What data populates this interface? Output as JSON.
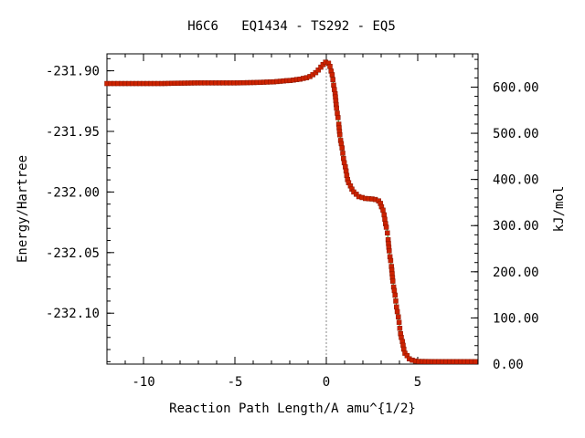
{
  "chart_data": {
    "type": "line",
    "title": "H6C6   EQ1434 - TS292 - EQ5",
    "xlabel": "Reaction Path Length/A amu^{1/2}",
    "ylabel": "Energy/Hartree",
    "y2label": "kJ/mol",
    "xlim": [
      -12,
      8.3
    ],
    "ylim": [
      -232.142,
      -231.886
    ],
    "y2lim": [
      0,
      672.1
    ],
    "x_ticks": [
      -10,
      -5,
      0,
      5
    ],
    "x_tick_labels": [
      "-10",
      "-5",
      "0",
      "5"
    ],
    "y_ticks": [
      -231.9,
      -231.95,
      -232.0,
      -232.05,
      -232.1
    ],
    "y_tick_labels": [
      "-231.90",
      "-231.95",
      "-232.00",
      "-232.05",
      "-232.10"
    ],
    "y2_ticks": [
      600,
      500,
      400,
      300,
      200,
      100,
      0
    ],
    "y2_tick_labels": [
      "600.00",
      "500.00",
      "400.00",
      "300.00",
      "200.00",
      "100.00",
      "0.00"
    ],
    "transition_state_x": 0,
    "grid": false,
    "series": [
      {
        "points": [
          [
            -12,
            -231.9105
          ],
          [
            -11,
            -231.9105
          ],
          [
            -10,
            -231.9105
          ],
          [
            -9,
            -231.9105
          ],
          [
            -8,
            -231.9102
          ],
          [
            -7,
            -231.91
          ],
          [
            -6,
            -231.91
          ],
          [
            -5,
            -231.91
          ],
          [
            -4,
            -231.9097
          ],
          [
            -3,
            -231.9092
          ],
          [
            -2,
            -231.908
          ],
          [
            -1.5,
            -231.907
          ],
          [
            -1,
            -231.9055
          ],
          [
            -0.7,
            -231.903
          ],
          [
            -0.4,
            -231.899
          ],
          [
            -0.2,
            -231.895
          ],
          [
            0,
            -231.8925
          ],
          [
            0.15,
            -231.894
          ],
          [
            0.3,
            -231.902
          ],
          [
            0.45,
            -231.916
          ],
          [
            0.6,
            -231.935
          ],
          [
            0.8,
            -231.959
          ],
          [
            1.0,
            -231.977
          ],
          [
            1.2,
            -231.992
          ],
          [
            1.5,
            -232.0
          ],
          [
            1.8,
            -232.004
          ],
          [
            2.2,
            -232.0055
          ],
          [
            2.6,
            -232.0058
          ],
          [
            2.9,
            -232.0075
          ],
          [
            3.1,
            -232.015
          ],
          [
            3.3,
            -232.03
          ],
          [
            3.5,
            -232.055
          ],
          [
            3.7,
            -232.08
          ],
          [
            3.9,
            -232.1
          ],
          [
            4.1,
            -232.12
          ],
          [
            4.3,
            -232.133
          ],
          [
            4.6,
            -232.1385
          ],
          [
            5.0,
            -232.1398
          ],
          [
            6.0,
            -232.14
          ],
          [
            7.0,
            -232.14
          ],
          [
            8.2,
            -232.14
          ]
        ]
      }
    ]
  }
}
